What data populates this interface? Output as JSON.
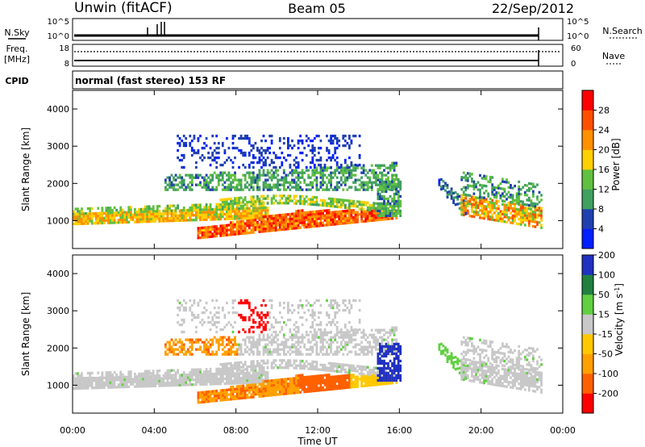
{
  "header": {
    "station": "Unwin (fitACF)",
    "beam": "Beam 05",
    "date": "22/Sep/2012"
  },
  "noise_panel": {
    "left_label": "N.Sky",
    "left_ticks": [
      "10^5",
      "10^0"
    ],
    "right_label": "N.Search",
    "right_ticks": [
      "10^5",
      "10^0"
    ]
  },
  "freq_panel": {
    "left_label_line1": "Freq.",
    "left_label_line2": "[MHz]",
    "left_ticks": [
      "18",
      "8"
    ],
    "right_label": "Nave",
    "right_ticks": [
      "60",
      "0"
    ]
  },
  "cpid": {
    "label": "CPID",
    "value": "normal (fast stereo) 153 RF"
  },
  "colors": {
    "scale": [
      "#0020ff",
      "#2040b0",
      "#40a060",
      "#60c040",
      "#ffd000",
      "#ff9000",
      "#ff5000",
      "#ff0000"
    ],
    "velocity": [
      "#ff0000",
      "#ff6000",
      "#ffa000",
      "#ffc800",
      "#c8c8c8",
      "#60d040",
      "#208040",
      "#2030c0"
    ]
  },
  "chart_data": [
    {
      "type": "heatmap",
      "name": "power",
      "ylabel": "Slant Range [km]",
      "ylim": [
        250,
        4500
      ],
      "yticks": [
        1000,
        2000,
        3000,
        4000
      ],
      "xlim": [
        0,
        24
      ],
      "colorbar": {
        "label": "Power [dB]",
        "ticks": [
          "4",
          "8",
          "12",
          "16",
          "20",
          "24",
          "28"
        ],
        "range": [
          0,
          32
        ]
      }
    },
    {
      "type": "heatmap",
      "name": "velocity",
      "ylabel": "Slant Range [km]",
      "ylim": [
        250,
        4500
      ],
      "yticks": [
        1000,
        2000,
        3000,
        4000
      ],
      "xlim": [
        0,
        24
      ],
      "colorbar": {
        "label": "Velocity [m s^-1]",
        "ticks": [
          "-200",
          "-100",
          "-50",
          "-15",
          "15",
          "50",
          "100",
          "200"
        ]
      }
    }
  ],
  "time_axis": {
    "label": "Time UT",
    "ticks": [
      {
        "h": 0,
        "label": "00:00"
      },
      {
        "h": 4,
        "label": "04:00"
      },
      {
        "h": 8,
        "label": "08:00"
      },
      {
        "h": 12,
        "label": "12:00"
      },
      {
        "h": 16,
        "label": "16:00"
      },
      {
        "h": 20,
        "label": "20:00"
      },
      {
        "h": 24,
        "label": "00:00"
      }
    ]
  }
}
